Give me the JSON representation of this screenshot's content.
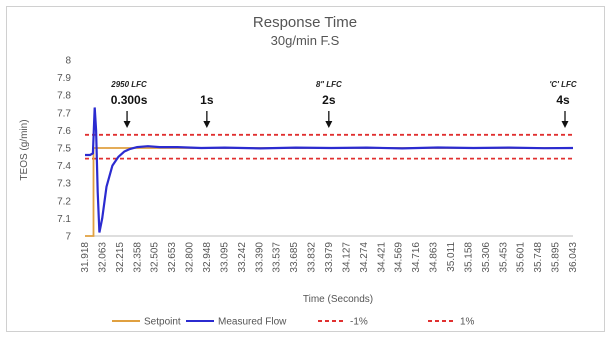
{
  "chart_data": {
    "type": "line",
    "title": "Response Time",
    "subtitle": "30g/min F.S",
    "xlabel": "Time (Seconds)",
    "ylabel": "TEOS (g/min)",
    "ylim": [
      7,
      8
    ],
    "y_ticks": [
      "7",
      "7.1",
      "7.2",
      "7.3",
      "7.4",
      "7.5",
      "7.6",
      "7.7",
      "7.8",
      "7.9",
      "8"
    ],
    "x_ticks": [
      "31.918",
      "32.063",
      "32.215",
      "32.358",
      "32.505",
      "32.653",
      "32.800",
      "32.948",
      "33.095",
      "33.242",
      "33.390",
      "33.537",
      "33.685",
      "33.832",
      "33.979",
      "34.127",
      "34.274",
      "34.421",
      "34.569",
      "34.716",
      "34.863",
      "35.011",
      "35.158",
      "35.306",
      "35.453",
      "35.601",
      "35.748",
      "35.895",
      "36.043"
    ],
    "xlim": [
      31.918,
      36.043
    ],
    "grid": false,
    "legend_position": "bottom",
    "series": [
      {
        "name": "Setpoint",
        "color": "#e0a040",
        "points": [
          [
            31.918,
            7.0
          ],
          [
            31.99,
            7.0
          ],
          [
            31.99,
            7.5
          ],
          [
            36.043,
            7.5
          ]
        ]
      },
      {
        "name": "Measured Flow",
        "color": "#2b2bd0",
        "points": [
          [
            31.918,
            7.46
          ],
          [
            31.96,
            7.46
          ],
          [
            31.985,
            7.47
          ],
          [
            32.0,
            7.73
          ],
          [
            32.012,
            7.6
          ],
          [
            32.025,
            7.25
          ],
          [
            32.04,
            7.02
          ],
          [
            32.063,
            7.1
          ],
          [
            32.1,
            7.28
          ],
          [
            32.15,
            7.4
          ],
          [
            32.2,
            7.45
          ],
          [
            32.25,
            7.48
          ],
          [
            32.3,
            7.495
          ],
          [
            32.358,
            7.505
          ],
          [
            32.45,
            7.51
          ],
          [
            32.55,
            7.505
          ],
          [
            32.7,
            7.505
          ],
          [
            32.9,
            7.5
          ],
          [
            33.1,
            7.502
          ],
          [
            33.4,
            7.498
          ],
          [
            33.7,
            7.502
          ],
          [
            34.0,
            7.5
          ],
          [
            34.3,
            7.502
          ],
          [
            34.6,
            7.498
          ],
          [
            34.9,
            7.503
          ],
          [
            35.2,
            7.5
          ],
          [
            35.5,
            7.502
          ],
          [
            35.8,
            7.499
          ],
          [
            36.043,
            7.5
          ]
        ]
      },
      {
        "name": "-1%",
        "color": "#e03030",
        "style": "dashed",
        "points": [
          [
            31.918,
            7.44
          ],
          [
            36.043,
            7.44
          ]
        ]
      },
      {
        "name": "1%",
        "color": "#e03030",
        "style": "dashed",
        "points": [
          [
            31.918,
            7.575
          ],
          [
            36.043,
            7.575
          ]
        ]
      }
    ],
    "annotations": [
      {
        "small": "2950 LFC",
        "big": "0.300s",
        "x": 32.358
      },
      {
        "small": "",
        "big": "1s",
        "x": 32.948
      },
      {
        "small": "8\" LFC",
        "big": "2s",
        "x": 33.979
      },
      {
        "small": "'C' LFC",
        "big": "4s",
        "x": 36.043
      }
    ]
  }
}
